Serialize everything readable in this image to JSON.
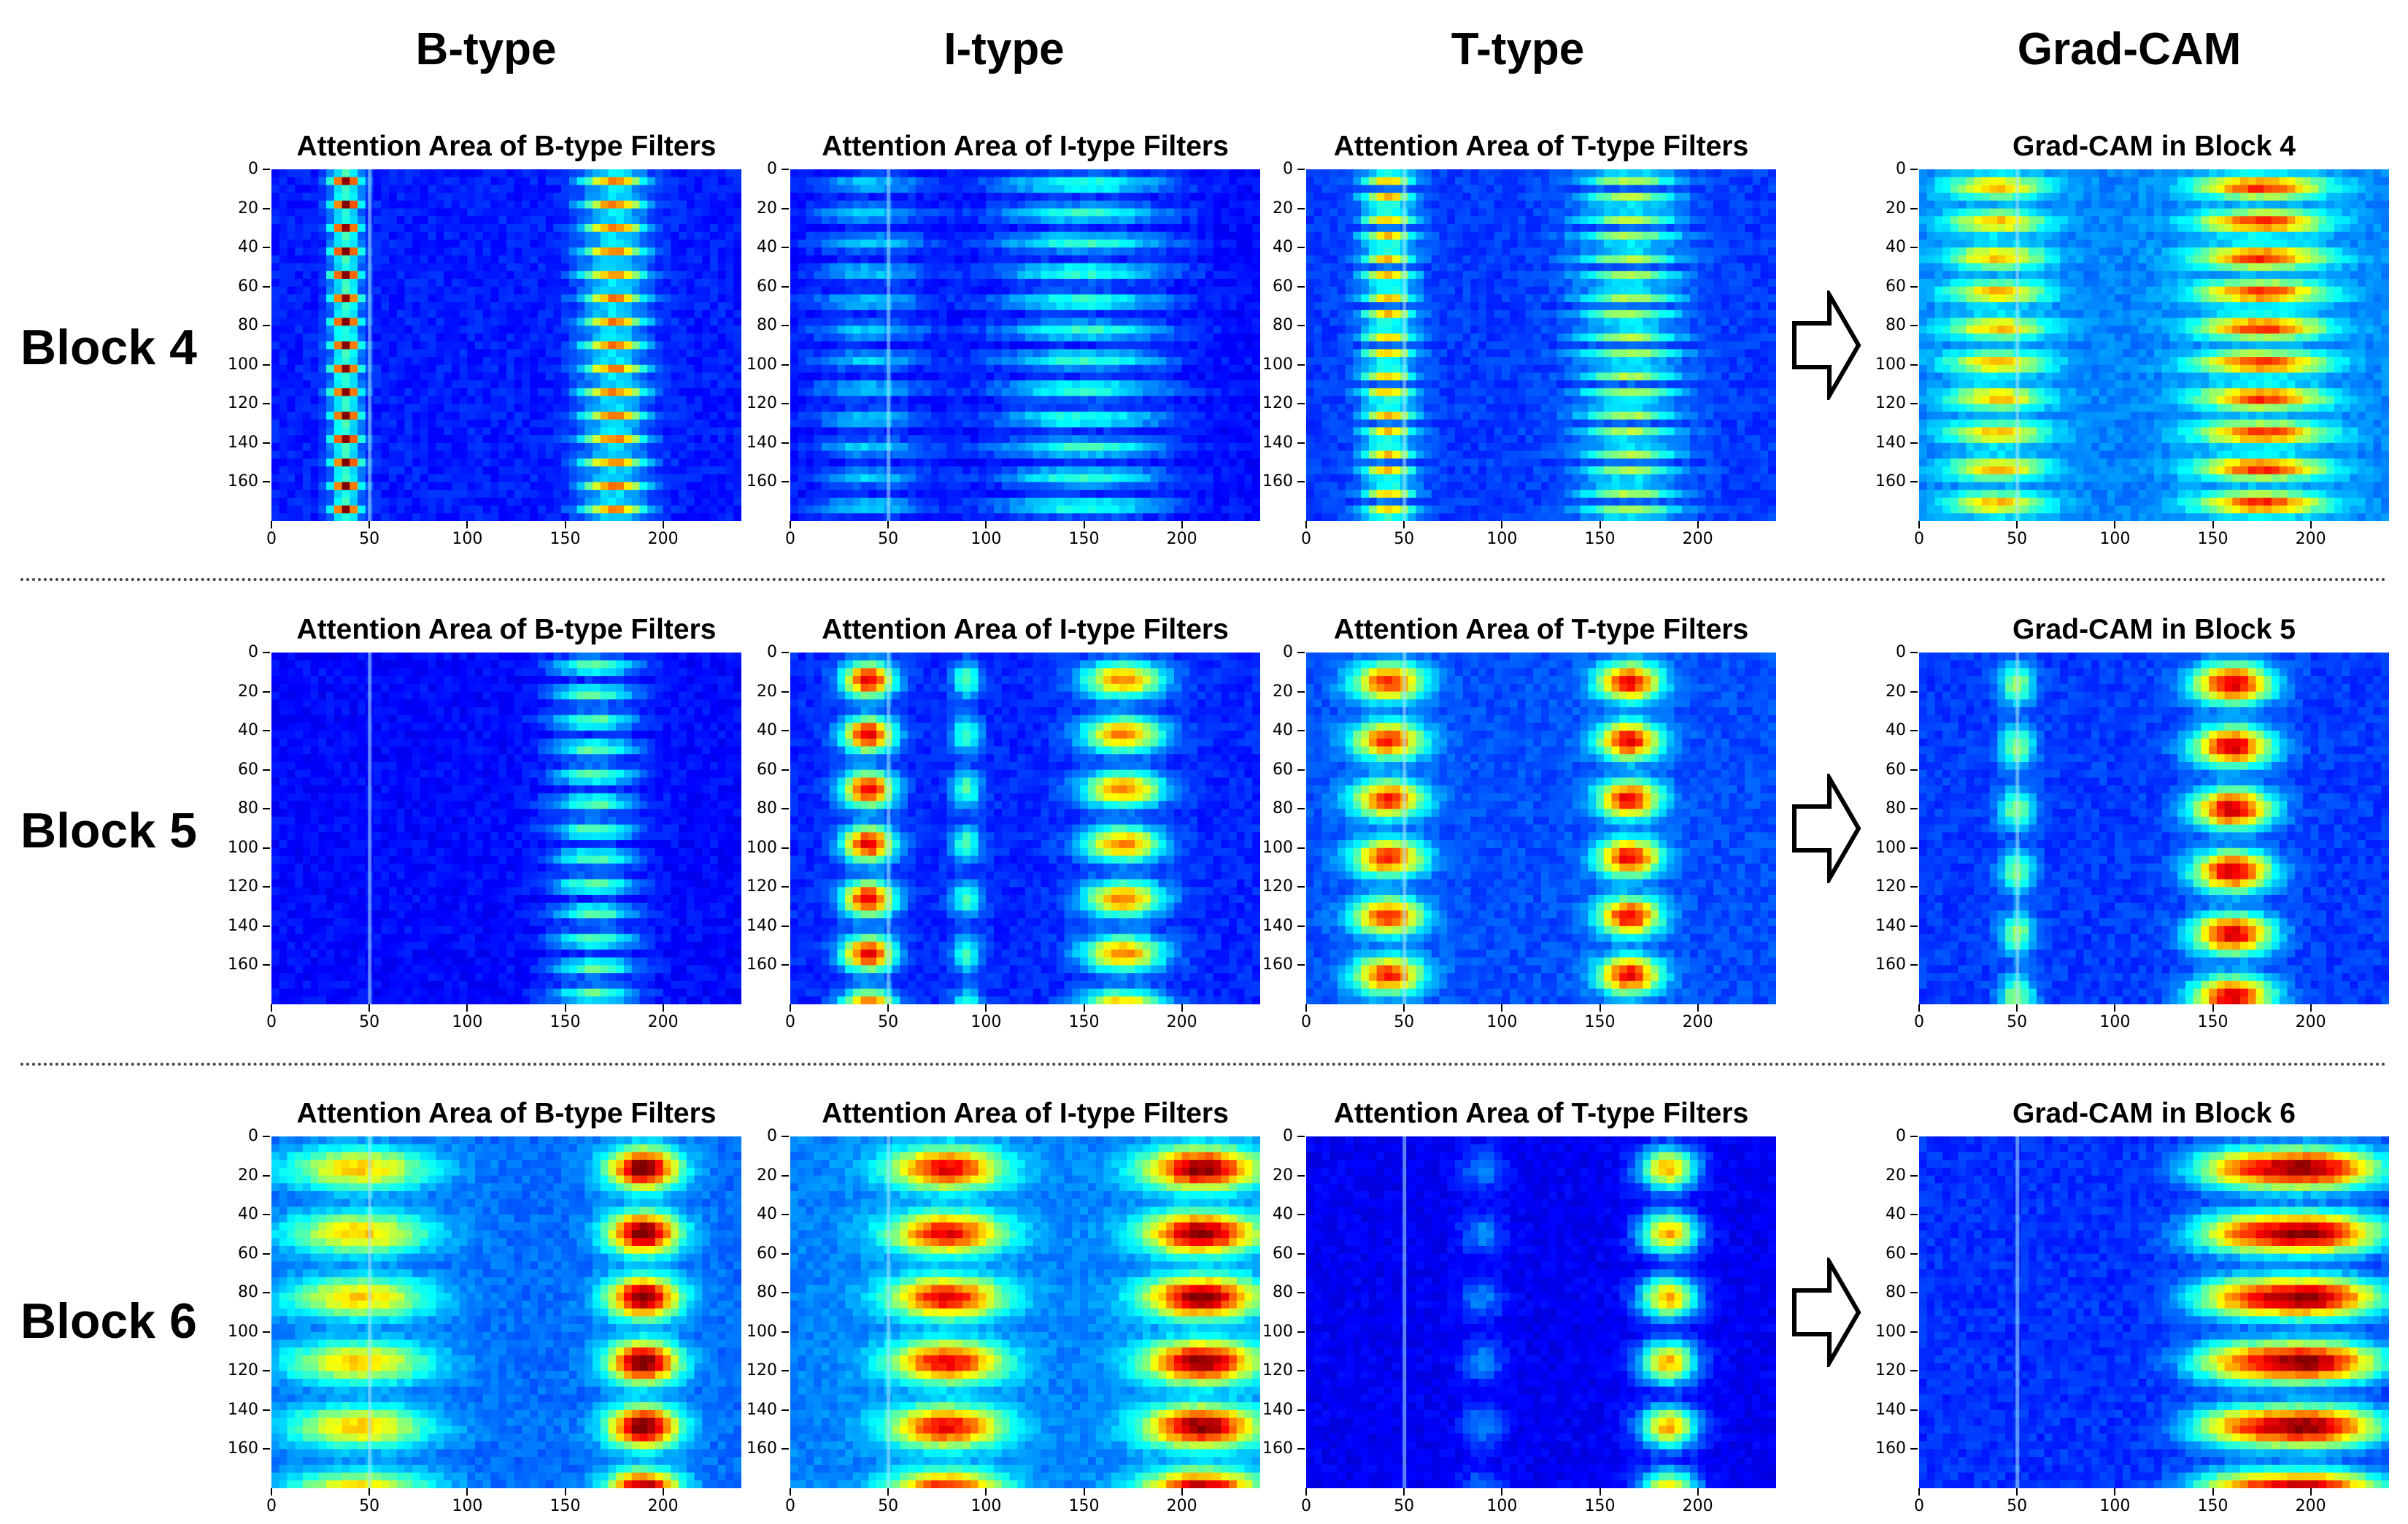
{
  "column_headers": [
    "B-type",
    "I-type",
    "T-type",
    "Grad-CAM"
  ],
  "rows": [
    {
      "label": "Block 4",
      "panel_titles": [
        "Attention Area of B-type Filters",
        "Attention Area of I-type Filters",
        "Attention Area of T-type Filters",
        "Grad-CAM in Block 4"
      ],
      "arrow_icon": "right-arrow-icon"
    },
    {
      "label": "Block 5",
      "panel_titles": [
        "Attention Area of B-type Filters",
        "Attention Area of I-type Filters",
        "Attention Area of T-type Filters",
        "Grad-CAM in Block 5"
      ],
      "arrow_icon": "right-arrow-icon"
    },
    {
      "label": "Block 6",
      "panel_titles": [
        "Attention Area of B-type Filters",
        "Attention Area of I-type Filters",
        "Attention Area of T-type Filters",
        "Grad-CAM in Block 6"
      ],
      "arrow_icon": "right-arrow-icon"
    }
  ],
  "colormap": {
    "name": "jet",
    "stops": [
      "#00008f",
      "#0000ff",
      "#0080ff",
      "#00ffff",
      "#80ff80",
      "#ffff00",
      "#ff8000",
      "#ff0000",
      "#800000"
    ]
  },
  "chart_data": {
    "type": "heatmap",
    "grid": "3x4",
    "x_ticks": [
      "0",
      "50",
      "100",
      "150",
      "200"
    ],
    "x_tick_values": [
      0,
      50,
      100,
      150,
      200
    ],
    "xlim": [
      0,
      240
    ],
    "y_ticks": [
      "0",
      "20",
      "40",
      "60",
      "80",
      "100",
      "120",
      "140",
      "160"
    ],
    "y_tick_values": [
      0,
      20,
      40,
      60,
      80,
      100,
      120,
      140,
      160
    ],
    "ylim": [
      0,
      180
    ],
    "xlabel": "",
    "ylabel": "",
    "panels": [
      [
        {
          "name": "Block 4 B-type",
          "blobs": [
            {
              "x": 38,
              "w": 10,
              "i": 0.85,
              "period": 12
            },
            {
              "x": 175,
              "w": 22,
              "i": 0.6,
              "period": 12
            }
          ],
          "stripes": [
            50
          ],
          "bg": 0.12
        },
        {
          "name": "Block 4 I-type",
          "blobs": [
            {
              "x": 150,
              "w": 60,
              "i": 0.3,
              "period": 15
            },
            {
              "x": 40,
              "w": 40,
              "i": 0.2,
              "period": 15
            }
          ],
          "stripes": [
            50
          ],
          "bg": 0.1
        },
        {
          "name": "Block 4 T-type",
          "blobs": [
            {
              "x": 42,
              "w": 18,
              "i": 0.55,
              "period": 10
            },
            {
              "x": 165,
              "w": 35,
              "i": 0.4,
              "period": 10
            }
          ],
          "stripes": [
            50
          ],
          "bg": 0.15
        },
        {
          "name": "Grad-CAM Block 4",
          "blobs": [
            {
              "x": 40,
              "w": 35,
              "i": 0.45,
              "period": 18
            },
            {
              "x": 175,
              "w": 45,
              "i": 0.6,
              "period": 18
            }
          ],
          "stripes": [
            50
          ],
          "bg": 0.22
        }
      ],
      [
        {
          "name": "Block 5 B-type",
          "blobs": [
            {
              "x": 165,
              "w": 30,
              "i": 0.35,
              "period": 14
            }
          ],
          "stripes": [
            50
          ],
          "bg": 0.1
        },
        {
          "name": "Block 5 I-type",
          "blobs": [
            {
              "x": 40,
              "w": 18,
              "i": 0.75,
              "period": 28
            },
            {
              "x": 170,
              "w": 28,
              "i": 0.6,
              "period": 28
            },
            {
              "x": 90,
              "w": 10,
              "i": 0.3,
              "period": 28
            }
          ],
          "stripes": [
            50
          ],
          "bg": 0.13
        },
        {
          "name": "Block 5 T-type",
          "blobs": [
            {
              "x": 42,
              "w": 25,
              "i": 0.65,
              "period": 30
            },
            {
              "x": 165,
              "w": 22,
              "i": 0.7,
              "period": 30
            }
          ],
          "stripes": [
            50
          ],
          "bg": 0.17
        },
        {
          "name": "Grad-CAM Block 5",
          "blobs": [
            {
              "x": 160,
              "w": 28,
              "i": 0.75,
              "period": 32
            },
            {
              "x": 50,
              "w": 12,
              "i": 0.35,
              "period": 32
            }
          ],
          "stripes": [
            50
          ],
          "bg": 0.15
        }
      ],
      [
        {
          "name": "Block 6 B-type",
          "blobs": [
            {
              "x": 45,
              "w": 50,
              "i": 0.45,
              "period": 33
            },
            {
              "x": 190,
              "w": 25,
              "i": 0.8,
              "period": 33
            }
          ],
          "stripes": [
            50
          ],
          "bg": 0.2
        },
        {
          "name": "Block 6 I-type",
          "blobs": [
            {
              "x": 80,
              "w": 40,
              "i": 0.65,
              "period": 33
            },
            {
              "x": 210,
              "w": 40,
              "i": 0.75,
              "period": 33
            }
          ],
          "stripes": [
            50
          ],
          "bg": 0.22
        },
        {
          "name": "Block 6 T-type",
          "blobs": [
            {
              "x": 185,
              "w": 20,
              "i": 0.6,
              "period": 33
            },
            {
              "x": 90,
              "w": 15,
              "i": 0.15,
              "period": 33
            }
          ],
          "stripes": [
            50
          ],
          "bg": 0.08
        },
        {
          "name": "Grad-CAM Block 6",
          "blobs": [
            {
              "x": 200,
              "w": 50,
              "i": 0.8,
              "period": 33
            },
            {
              "x": 160,
              "w": 35,
              "i": 0.35,
              "period": 33
            }
          ],
          "stripes": [
            50
          ],
          "bg": 0.14
        }
      ]
    ]
  }
}
